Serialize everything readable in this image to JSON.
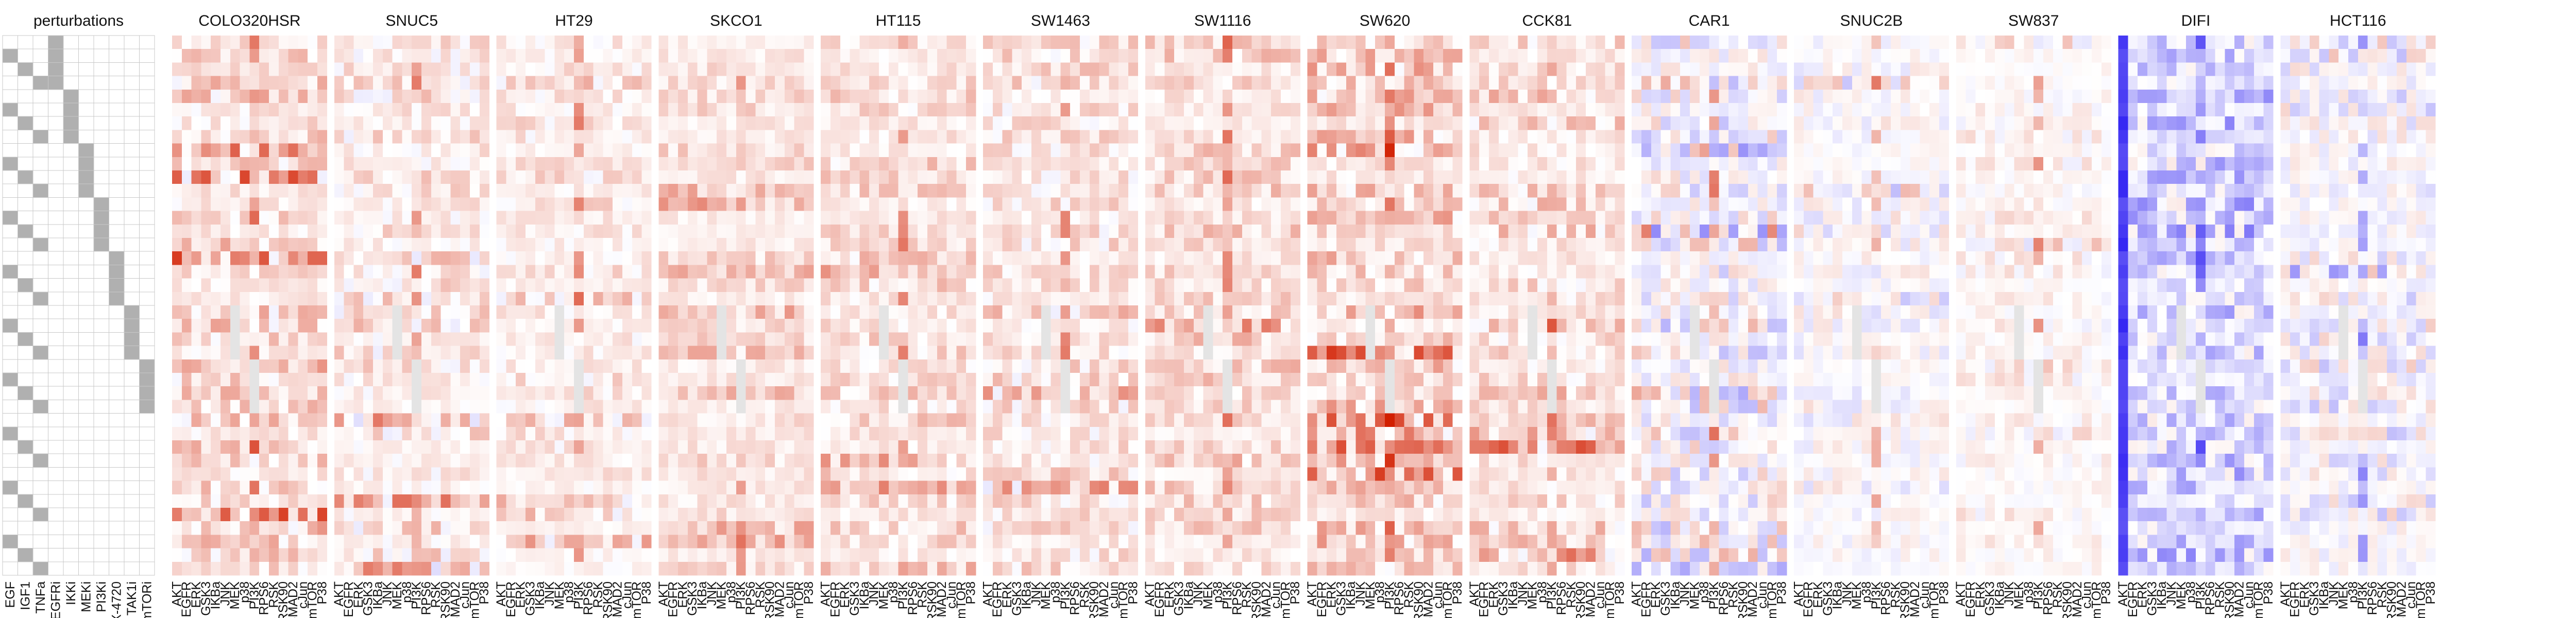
{
  "chart_data": {
    "type": "heatmap",
    "title": "",
    "perturbation_panel": {
      "title": "perturbations",
      "columns": [
        "EGF",
        "IGF1",
        "TNFa",
        "EGFRi",
        "IKKi",
        "MEKi",
        "PI3Ki",
        "PLX-4720",
        "TAK1i",
        "mTORi"
      ],
      "rows": 40,
      "colors": {
        "active": "#b0b0b0",
        "inactive": "#ffffff",
        "grid": "#c8c8c8"
      }
    },
    "x_tick_labels": [
      "AKT",
      "EGFR",
      "ERK",
      "GSK3",
      "IKBa",
      "JNK",
      "MEK",
      "p38",
      "PI3K",
      "RPS6",
      "RSK",
      "RSK90",
      "SMAD2",
      "cJun",
      "mTOR",
      "P38"
    ],
    "rows": 40,
    "color_scale": {
      "negative": "#2a1bf2",
      "zero": "#ffffff",
      "positive": "#d21f00",
      "missing": "#e4e4e4",
      "range": [
        -1,
        1
      ]
    },
    "cell_lines": [
      {
        "name": "COLO320HSR",
        "intensity": 0.55,
        "bias": 0.4
      },
      {
        "name": "SNUC5",
        "intensity": 0.45,
        "bias": 0.3
      },
      {
        "name": "HT29",
        "intensity": 0.35,
        "bias": 0.35
      },
      {
        "name": "SKCO1",
        "intensity": 0.3,
        "bias": 0.55
      },
      {
        "name": "HT115",
        "intensity": 0.4,
        "bias": 0.45
      },
      {
        "name": "SW1463",
        "intensity": 0.45,
        "bias": 0.35
      },
      {
        "name": "SW1116",
        "intensity": 0.4,
        "bias": 0.5
      },
      {
        "name": "SW620",
        "intensity": 0.55,
        "bias": 0.45
      },
      {
        "name": "CCK81",
        "intensity": 0.5,
        "bias": 0.4
      },
      {
        "name": "CAR1",
        "intensity": 0.75,
        "bias": 0.0
      },
      {
        "name": "SNUC2B",
        "intensity": 0.35,
        "bias": 0.0
      },
      {
        "name": "SW837",
        "intensity": 0.3,
        "bias": 0.2
      },
      {
        "name": "DIFI",
        "intensity": 0.7,
        "bias": -0.35
      },
      {
        "name": "HCT116",
        "intensity": 0.55,
        "bias": -0.05
      }
    ]
  }
}
